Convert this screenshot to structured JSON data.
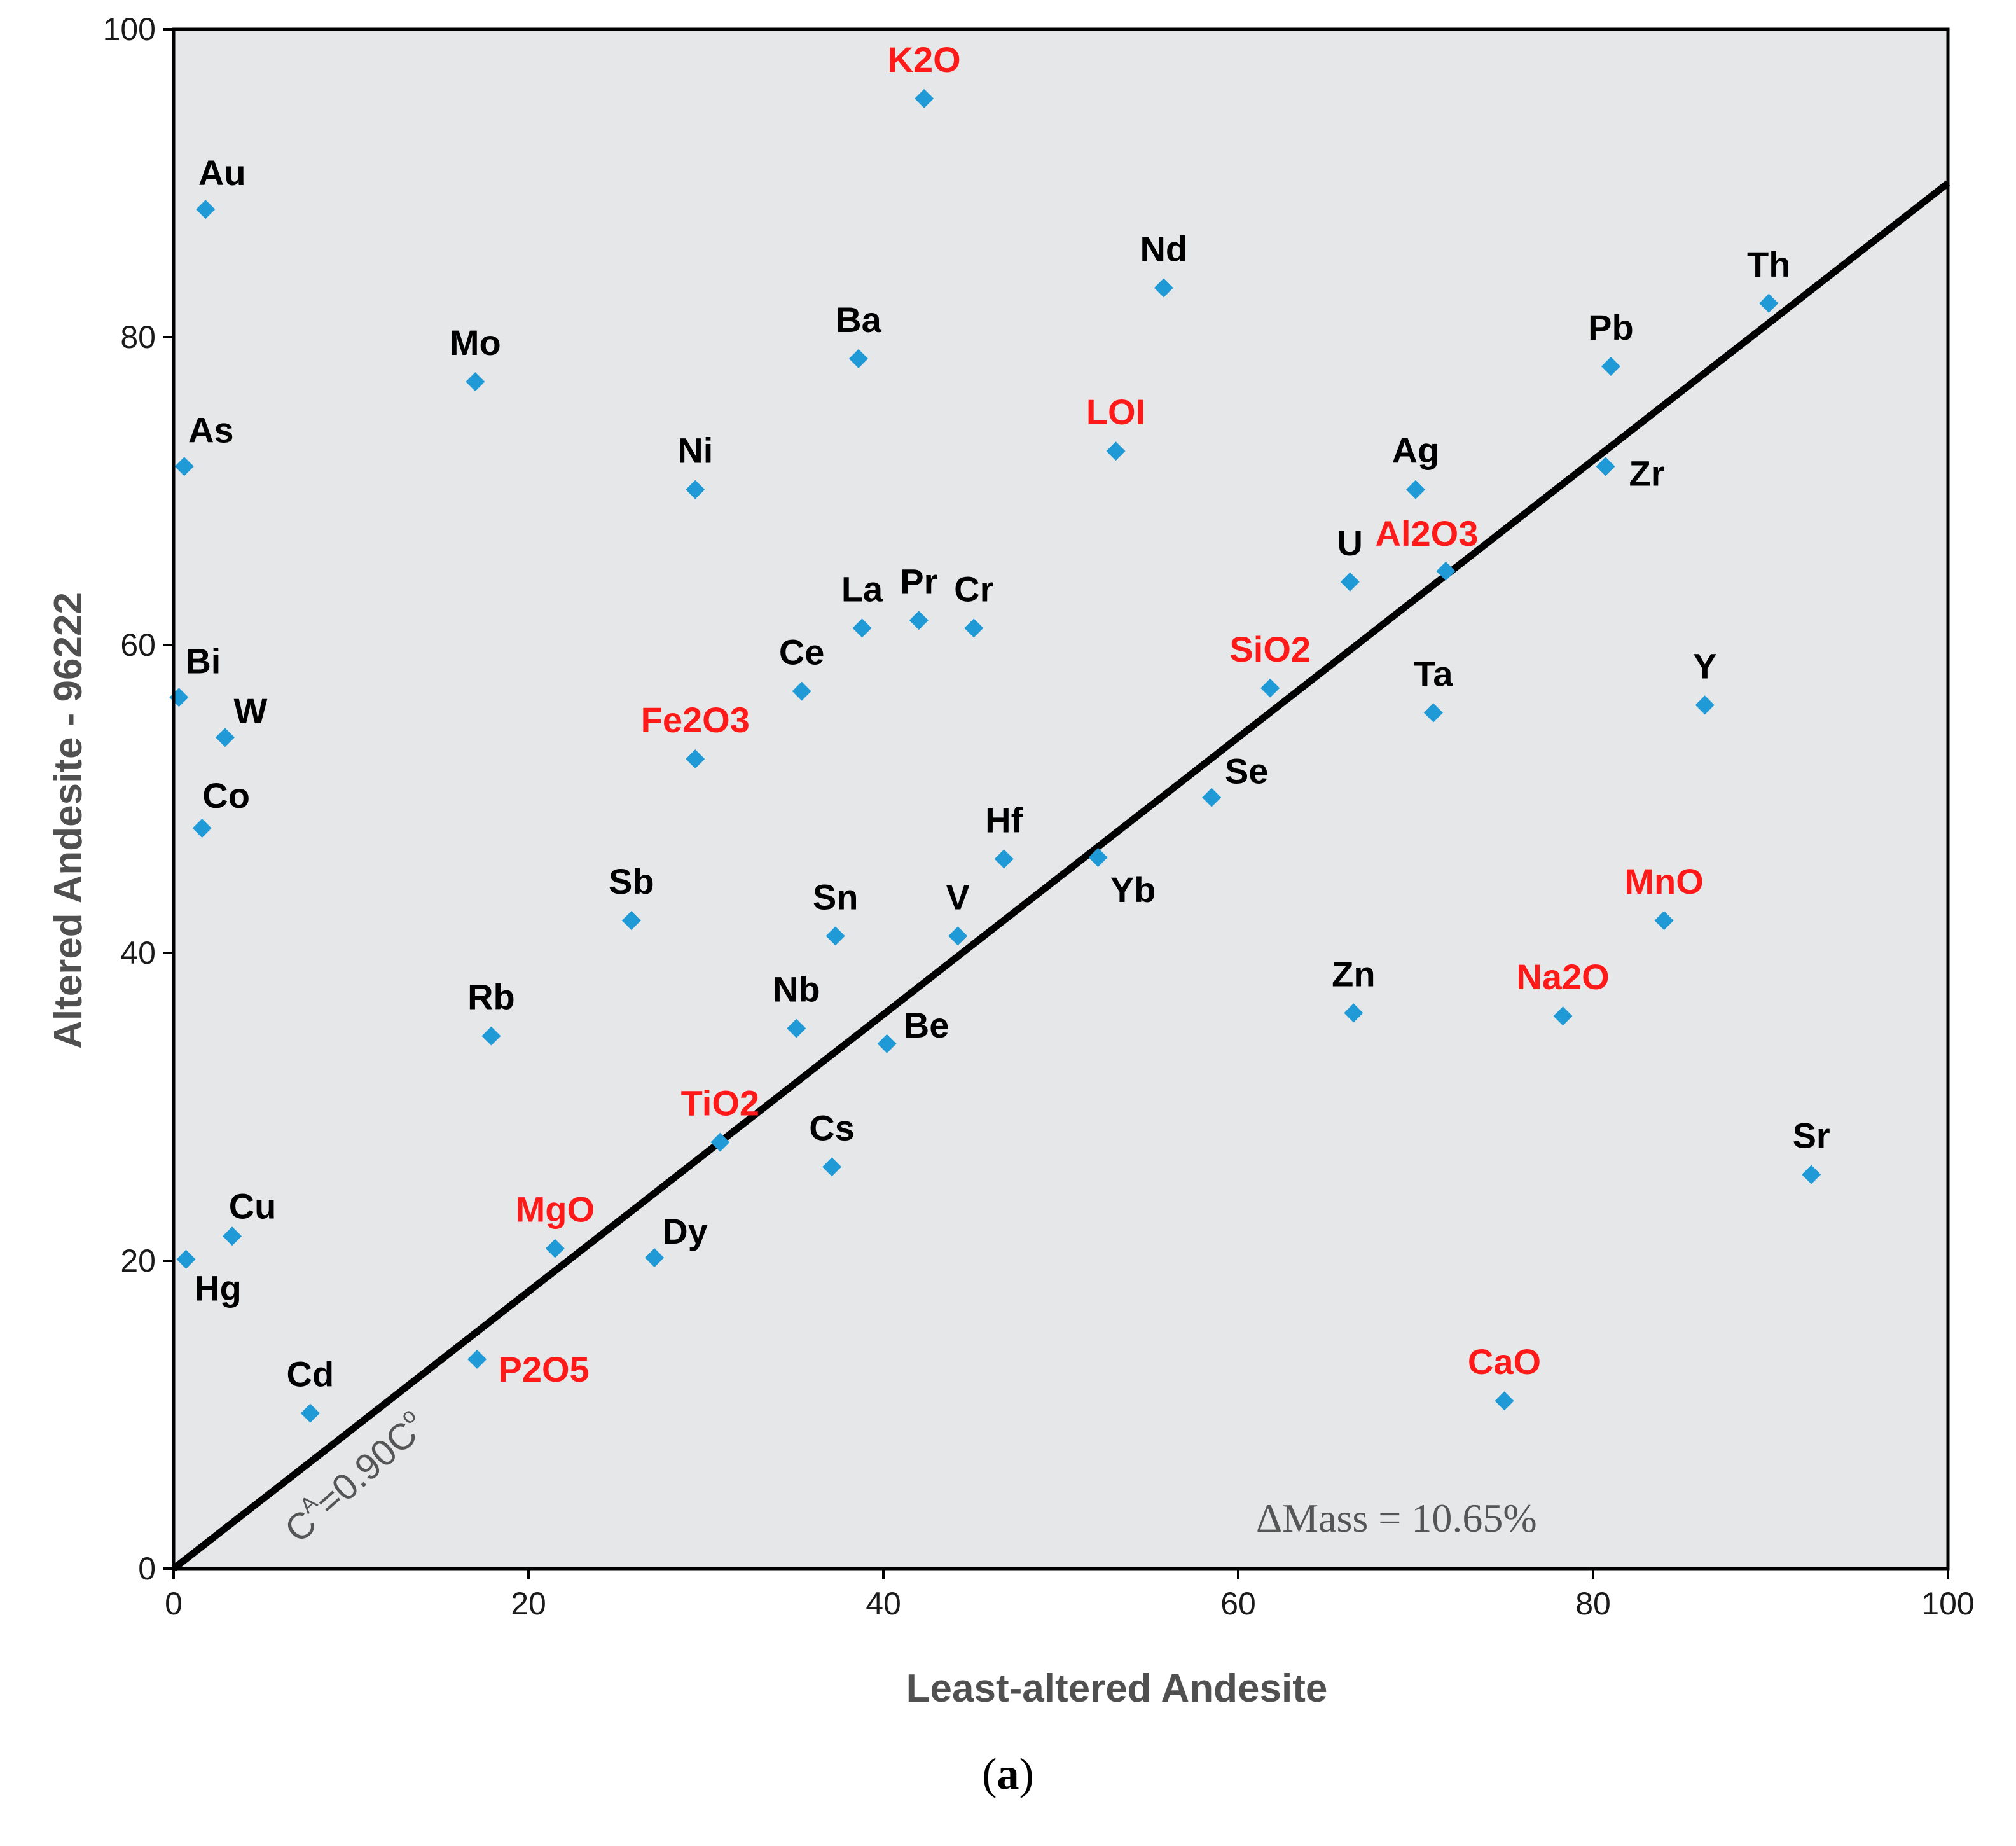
{
  "chart_data": {
    "type": "scatter",
    "xlabel": "Least-altered Andesite",
    "ylabel": "Altered Andesite - 96222",
    "xlim": [
      0,
      100
    ],
    "ylim": [
      0,
      100
    ],
    "xticks": [
      "0",
      "20",
      "40",
      "60",
      "80",
      "100"
    ],
    "yticks": [
      "0",
      "20",
      "40",
      "60",
      "80",
      "100"
    ],
    "grid": false,
    "legend": "none",
    "colors": {
      "background": "#e6e7e8",
      "marker": "#1f9ad6",
      "element_label": "#000000",
      "oxide_label": "#ff1a1a",
      "fit_line": "#000000"
    },
    "points": [
      {
        "label": "K2O",
        "x": 42.3,
        "y": 95.5,
        "group": "oxide"
      },
      {
        "label": "Au",
        "x": 1.8,
        "y": 88.3,
        "group": "element"
      },
      {
        "label": "Nd",
        "x": 55.8,
        "y": 83.2,
        "group": "element"
      },
      {
        "label": "Th",
        "x": 89.9,
        "y": 82.2,
        "group": "element"
      },
      {
        "label": "Ba",
        "x": 38.6,
        "y": 78.6,
        "group": "element"
      },
      {
        "label": "Pb",
        "x": 81.0,
        "y": 78.1,
        "group": "element"
      },
      {
        "label": "Mo",
        "x": 17.0,
        "y": 77.1,
        "group": "element"
      },
      {
        "label": "LOI",
        "x": 53.1,
        "y": 72.6,
        "group": "oxide"
      },
      {
        "label": "As",
        "x": 0.6,
        "y": 71.6,
        "group": "element"
      },
      {
        "label": "Zr",
        "x": 80.7,
        "y": 71.6,
        "group": "element"
      },
      {
        "label": "Ag",
        "x": 70.0,
        "y": 70.1,
        "group": "element"
      },
      {
        "label": "Ni",
        "x": 29.4,
        "y": 70.1,
        "group": "element"
      },
      {
        "label": "Al2O3",
        "x": 71.7,
        "y": 64.8,
        "group": "oxide"
      },
      {
        "label": "U",
        "x": 66.3,
        "y": 64.1,
        "group": "element"
      },
      {
        "label": "Pr",
        "x": 42.0,
        "y": 61.6,
        "group": "element"
      },
      {
        "label": "La",
        "x": 38.8,
        "y": 61.1,
        "group": "element"
      },
      {
        "label": "Cr",
        "x": 45.1,
        "y": 61.1,
        "group": "element"
      },
      {
        "label": "SiO2",
        "x": 61.8,
        "y": 57.2,
        "group": "oxide"
      },
      {
        "label": "Ce",
        "x": 35.4,
        "y": 57.0,
        "group": "element"
      },
      {
        "label": "Bi",
        "x": 0.3,
        "y": 56.6,
        "group": "element"
      },
      {
        "label": "Y",
        "x": 86.3,
        "y": 56.1,
        "group": "element"
      },
      {
        "label": "Ta",
        "x": 71.0,
        "y": 55.6,
        "group": "element"
      },
      {
        "label": "W",
        "x": 2.9,
        "y": 54.0,
        "group": "element"
      },
      {
        "label": "Fe2O3",
        "x": 29.4,
        "y": 52.6,
        "group": "oxide"
      },
      {
        "label": "Se",
        "x": 58.5,
        "y": 50.1,
        "group": "element"
      },
      {
        "label": "Co",
        "x": 1.6,
        "y": 48.1,
        "group": "element"
      },
      {
        "label": "Yb",
        "x": 52.1,
        "y": 46.2,
        "group": "element"
      },
      {
        "label": "Hf",
        "x": 46.8,
        "y": 46.1,
        "group": "element"
      },
      {
        "label": "Sb",
        "x": 25.8,
        "y": 42.1,
        "group": "element"
      },
      {
        "label": "MnO",
        "x": 84.0,
        "y": 42.1,
        "group": "oxide"
      },
      {
        "label": "Sn",
        "x": 37.3,
        "y": 41.1,
        "group": "element"
      },
      {
        "label": "V",
        "x": 44.2,
        "y": 41.1,
        "group": "element"
      },
      {
        "label": "Zn",
        "x": 66.5,
        "y": 36.1,
        "group": "element"
      },
      {
        "label": "Na2O",
        "x": 78.3,
        "y": 35.9,
        "group": "oxide"
      },
      {
        "label": "Nb",
        "x": 35.1,
        "y": 35.1,
        "group": "element"
      },
      {
        "label": "Rb",
        "x": 17.9,
        "y": 34.6,
        "group": "element"
      },
      {
        "label": "Be",
        "x": 40.2,
        "y": 34.1,
        "group": "element"
      },
      {
        "label": "TiO2",
        "x": 30.8,
        "y": 27.7,
        "group": "oxide"
      },
      {
        "label": "Cs",
        "x": 37.1,
        "y": 26.1,
        "group": "element"
      },
      {
        "label": "Sr",
        "x": 92.3,
        "y": 25.6,
        "group": "element"
      },
      {
        "label": "Cu",
        "x": 3.3,
        "y": 21.6,
        "group": "element"
      },
      {
        "label": "MgO",
        "x": 21.5,
        "y": 20.8,
        "group": "oxide"
      },
      {
        "label": "Dy",
        "x": 27.1,
        "y": 20.2,
        "group": "element"
      },
      {
        "label": "Hg",
        "x": 0.7,
        "y": 20.1,
        "group": "element"
      },
      {
        "label": "P2O5",
        "x": 17.1,
        "y": 13.6,
        "group": "oxide"
      },
      {
        "label": "CaO",
        "x": 75.0,
        "y": 10.9,
        "group": "oxide"
      },
      {
        "label": "Cd",
        "x": 7.7,
        "y": 10.1,
        "group": "element"
      }
    ],
    "fit_line": {
      "slope": 0.9,
      "x_range": [
        0,
        100
      ]
    },
    "annotations": {
      "fit_prefix": "C",
      "fit_sup_a": "A",
      "fit_middle": "=0.90C",
      "fit_sup_o": "o",
      "mass_change": "ΔMass = 10.65%"
    }
  },
  "caption": {
    "open": "(",
    "letter": "a",
    "close": ")"
  }
}
